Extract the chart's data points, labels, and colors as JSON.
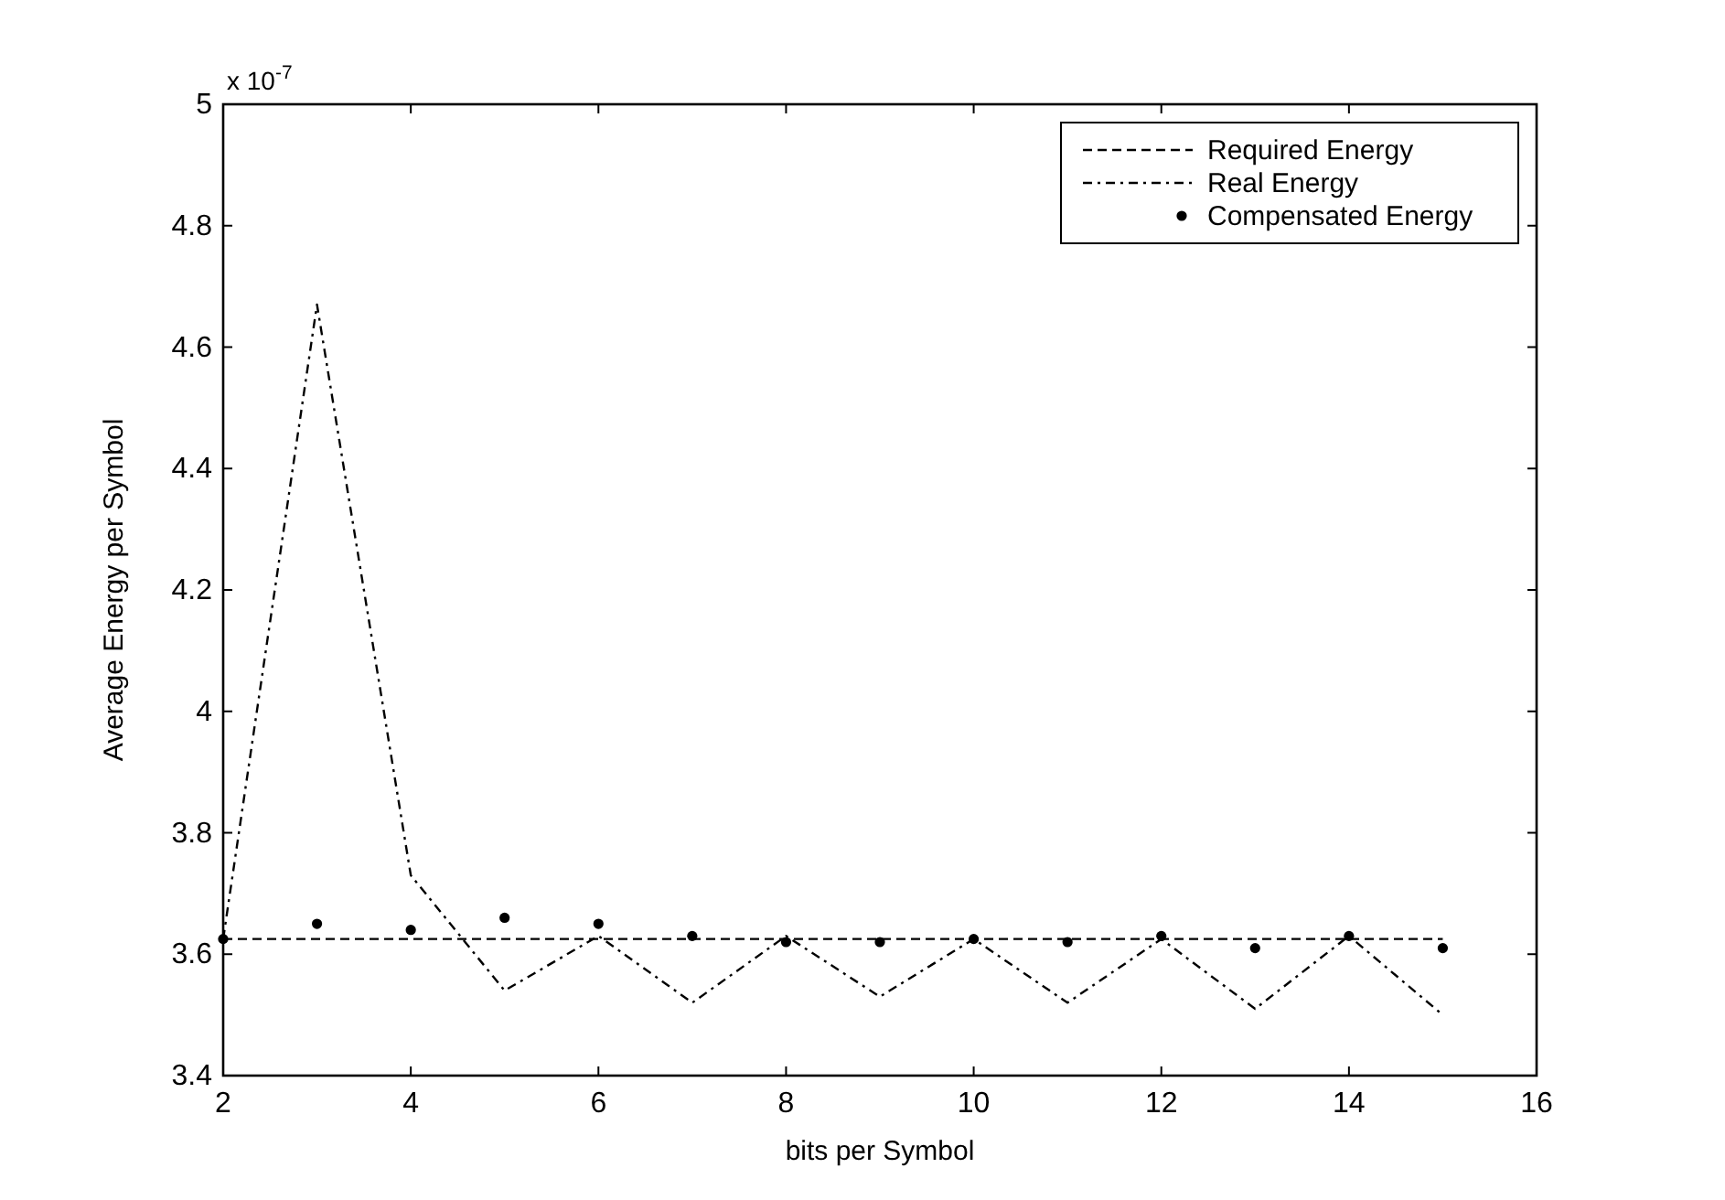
{
  "chart_data": {
    "type": "line",
    "xlabel": "bits per Symbol",
    "ylabel": "Average Energy per Symbol",
    "annotations": [
      "x 10$^{-7}$"
    ],
    "x": [
      2,
      3,
      4,
      5,
      6,
      7,
      8,
      9,
      10,
      11,
      12,
      13,
      14,
      15
    ],
    "xlim": [
      2,
      16
    ],
    "xticks": [
      2,
      4,
      6,
      8,
      10,
      12,
      14,
      16
    ],
    "ylim": [
      3.4,
      5
    ],
    "yticks": [
      3.4,
      3.6,
      3.8,
      4,
      4.2,
      4.4,
      4.6,
      4.8,
      5
    ],
    "legend": "top right",
    "grid": false,
    "series": [
      {
        "name": "Required Energy",
        "color": "#000000",
        "line_style": "dashed",
        "values": [
          3.625,
          3.625,
          3.625,
          3.625,
          3.625,
          3.625,
          3.625,
          3.625,
          3.625,
          3.625,
          3.625,
          3.625,
          3.625,
          3.625
        ]
      },
      {
        "name": "Real Energy",
        "color": "#000000",
        "line_style": "dotted",
        "values": [
          3.625,
          4.67,
          3.73,
          3.54,
          3.63,
          3.52,
          3.63,
          3.53,
          3.625,
          3.52,
          3.625,
          3.51,
          3.63,
          3.5
        ]
      },
      {
        "name": "Compensated Energy",
        "color": "#000000",
        "type": "scatter",
        "marker": "circle",
        "values": [
          3.625,
          3.65,
          3.64,
          3.66,
          3.65,
          3.63,
          3.62,
          3.62,
          3.625,
          3.62,
          3.63,
          3.61,
          3.63,
          3.61
        ]
      }
    ]
  }
}
